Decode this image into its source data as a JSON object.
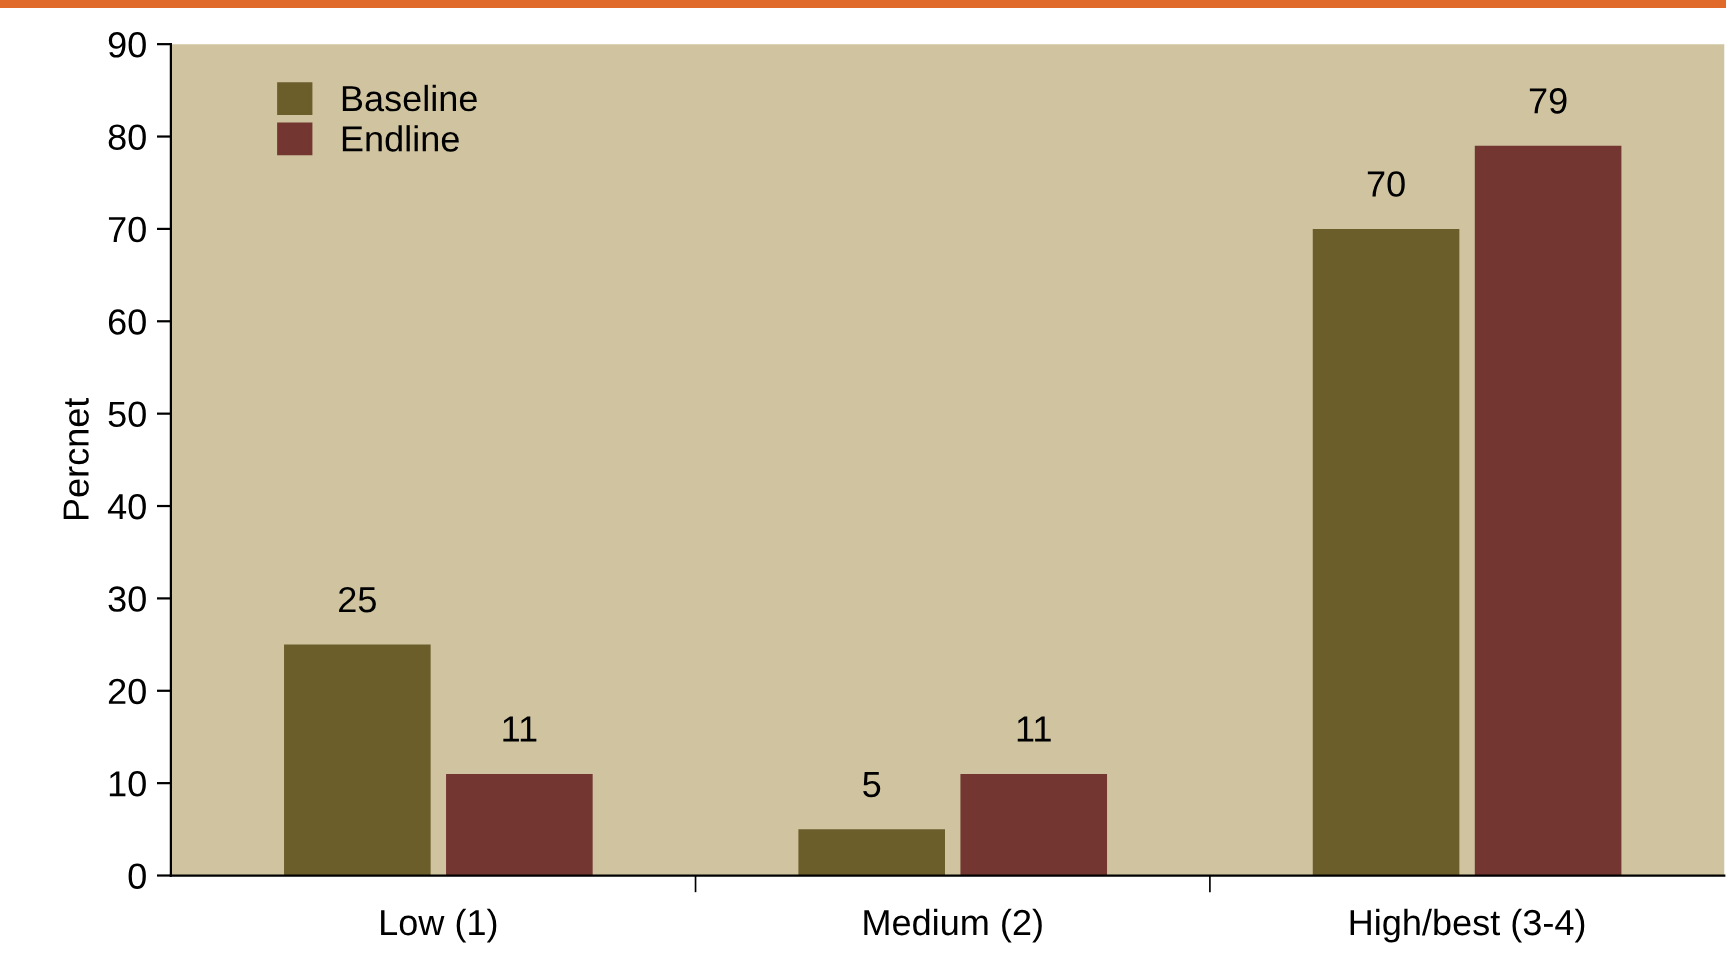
{
  "chart_data": {
    "type": "bar",
    "ylabel": "Percnet",
    "categories": [
      "Low (1)",
      "Medium (2)",
      "High/best (3-4)"
    ],
    "series": [
      {
        "name": "Baseline",
        "color": "#6b5e2b",
        "values": [
          25,
          5,
          70
        ]
      },
      {
        "name": "Endline",
        "color": "#733630",
        "values": [
          11,
          11,
          79
        ]
      }
    ],
    "ylim": [
      0,
      90
    ],
    "yticks": [
      0,
      10,
      20,
      30,
      40,
      50,
      60,
      70,
      80,
      90
    ],
    "data_labels": true,
    "legend": "top left",
    "grid": false
  }
}
